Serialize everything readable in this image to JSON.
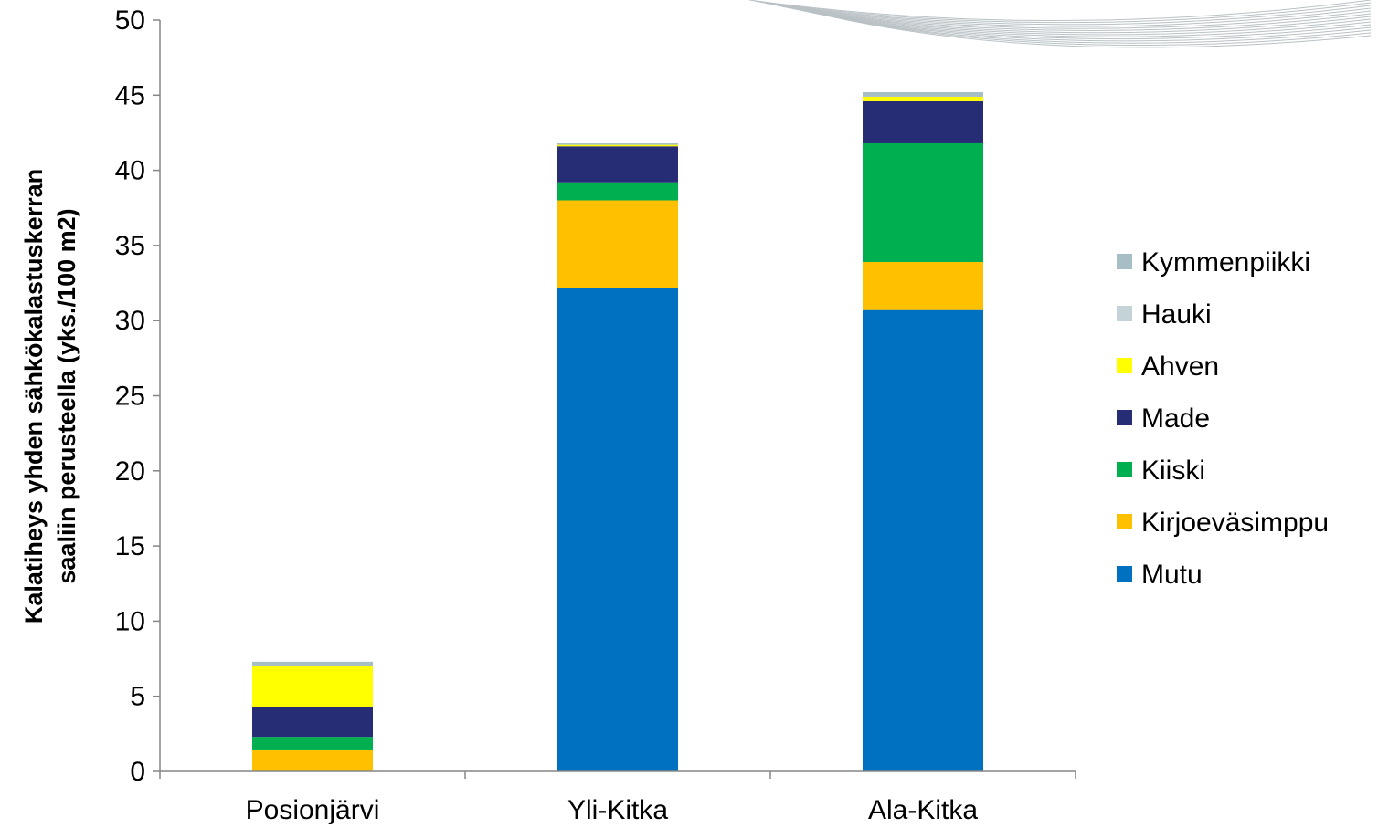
{
  "chart_data": {
    "type": "bar",
    "stacked": true,
    "title": "",
    "xlabel": "",
    "ylabel_lines": [
      "Kalatiheys yhden sähkökalastuskerran",
      "saaliin perusteella (yks./100 m2)"
    ],
    "ylim": [
      0,
      50
    ],
    "yticks": [
      0,
      5,
      10,
      15,
      20,
      25,
      30,
      35,
      40,
      45,
      50
    ],
    "grid": false,
    "legend_position": "right",
    "categories": [
      "Posionjärvi",
      "Yli-Kitka",
      "Ala-Kitka"
    ],
    "series": [
      {
        "name": "Mutu",
        "color": "#0070C0",
        "values": [
          0.0,
          32.2,
          30.7
        ]
      },
      {
        "name": "Kirjoeväsimppu",
        "color": "#FFC000",
        "values": [
          1.4,
          5.8,
          3.2
        ]
      },
      {
        "name": "Kiiski",
        "color": "#00B050",
        "values": [
          0.9,
          1.2,
          7.9
        ]
      },
      {
        "name": "Made",
        "color": "#262D75",
        "values": [
          2.0,
          2.4,
          2.8
        ]
      },
      {
        "name": "Ahven",
        "color": "#FFFF00",
        "values": [
          2.7,
          0.1,
          0.3
        ]
      },
      {
        "name": "Hauki",
        "color": "#C4D3D8",
        "values": [
          0.0,
          0.0,
          0.0
        ]
      },
      {
        "name": "Kymmenpiikki",
        "color": "#A7BEC6",
        "values": [
          0.3,
          0.1,
          0.3
        ]
      }
    ],
    "legend_order": [
      "Kymmenpiikki",
      "Hauki",
      "Ahven",
      "Made",
      "Kiiski",
      "Kirjoeväsimppu",
      "Mutu"
    ]
  }
}
